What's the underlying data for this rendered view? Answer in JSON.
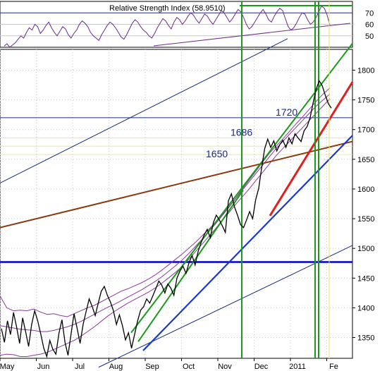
{
  "chart_data": {
    "type": "line",
    "indicator": {
      "title": "Relative Strength Index (58.9510)",
      "yticks": [
        70,
        60,
        50
      ],
      "ylim": [
        40,
        80
      ],
      "values": [
        41,
        43,
        40,
        42,
        44,
        47,
        50,
        48,
        53,
        57,
        55,
        60,
        58,
        52,
        55,
        59,
        62,
        57,
        53,
        50,
        54,
        58,
        56,
        51,
        48,
        52,
        55,
        60,
        63,
        61,
        58,
        53,
        50,
        48,
        46,
        51,
        55,
        59,
        62,
        60,
        57,
        53,
        49,
        47,
        51,
        56,
        61,
        64,
        62,
        58,
        55,
        53,
        50,
        48,
        52,
        57,
        61,
        65,
        63,
        59,
        56,
        62,
        66,
        64,
        60,
        63,
        67,
        70,
        68,
        64,
        61,
        65,
        69,
        67,
        63,
        60,
        64,
        68,
        72,
        70,
        66,
        62,
        65,
        69,
        73,
        71,
        66,
        60,
        56,
        58,
        62,
        66,
        70,
        73,
        69,
        64,
        62,
        67,
        71,
        74,
        72,
        65,
        58,
        55,
        57,
        61,
        66,
        70,
        69,
        64,
        60,
        62,
        66,
        71,
        76,
        74,
        68,
        59
      ]
    },
    "price": {
      "yticks": [
        1800,
        1750,
        1700,
        1650,
        1600,
        1550,
        1500,
        1450,
        1400,
        1350
      ],
      "ylim": [
        1315,
        1835
      ],
      "xlabels": [
        "May",
        "Jun",
        "Jul",
        "Aug",
        "Sep",
        "Oct",
        "Nov",
        "Dec",
        "2011",
        "Fe"
      ],
      "values": [
        1365,
        1342,
        1378,
        1355,
        1392,
        1368,
        1340,
        1383,
        1360,
        1335,
        1372,
        1395,
        1378,
        1356,
        1332,
        1318,
        1345,
        1330,
        1322,
        1357,
        1380,
        1342,
        1320,
        1356,
        1390,
        1366,
        1340,
        1372,
        1394,
        1415,
        1402,
        1387,
        1408,
        1428,
        1436,
        1421,
        1410,
        1395,
        1372,
        1388,
        1370,
        1346,
        1358,
        1332,
        1355,
        1378,
        1396,
        1402,
        1415,
        1408,
        1420,
        1432,
        1445,
        1438,
        1425,
        1440,
        1433,
        1421,
        1450,
        1462,
        1470,
        1458,
        1476,
        1488,
        1472,
        1495,
        1510,
        1523,
        1532,
        1518,
        1543,
        1556,
        1548,
        1538,
        1527,
        1580,
        1592,
        1570,
        1556,
        1540,
        1535,
        1548,
        1562,
        1550,
        1582,
        1601,
        1636,
        1668,
        1684,
        1670,
        1681,
        1664,
        1675,
        1682,
        1670,
        1686,
        1676,
        1693,
        1686,
        1680,
        1698,
        1705,
        1720,
        1745,
        1768,
        1782,
        1774,
        1758,
        1744,
        1736
      ],
      "upper_band": [
        1420,
        1400,
        1395,
        1396,
        1395,
        1398,
        1393,
        1389,
        1390,
        1387,
        1385,
        1390,
        1395,
        1400,
        1404,
        1410,
        1416,
        1422,
        1428,
        1432,
        1437,
        1442,
        1448,
        1455,
        1463,
        1472,
        1481,
        1490,
        1500,
        1510,
        1521,
        1532,
        1544,
        1556,
        1570,
        1584,
        1600,
        1615,
        1630,
        1645,
        1660,
        1672,
        1684,
        1697,
        1710,
        1722,
        1735,
        1748,
        1760,
        1770
      ],
      "middle_band": [
        1370,
        1368,
        1366,
        1364,
        1363,
        1362,
        1360,
        1360,
        1362,
        1365,
        1368,
        1372,
        1377,
        1383,
        1389,
        1395,
        1401,
        1406,
        1412,
        1418,
        1424,
        1430,
        1437,
        1444,
        1452,
        1461,
        1470,
        1480,
        1491,
        1503,
        1515,
        1528,
        1541,
        1555,
        1569,
        1584,
        1598,
        1612,
        1626,
        1640,
        1654,
        1668,
        1680,
        1692,
        1704,
        1716,
        1728,
        1740,
        1750,
        1760
      ],
      "lower_band": [
        1320,
        1322,
        1321,
        1318,
        1318,
        1320,
        1322,
        1325,
        1330,
        1335,
        1340,
        1345,
        1352,
        1360,
        1368,
        1377,
        1386,
        1394,
        1401,
        1408,
        1414,
        1420,
        1426,
        1433,
        1441,
        1450,
        1459,
        1469,
        1481,
        1494,
        1507,
        1520,
        1533,
        1547,
        1560,
        1574,
        1587,
        1600,
        1614,
        1628,
        1642,
        1656,
        1668,
        1680,
        1692,
        1704,
        1716,
        1728,
        1740,
        1752
      ],
      "annotations": [
        {
          "text": "1720",
          "value": 1720
        },
        {
          "text": "1686",
          "value": 1686
        },
        {
          "text": "1650",
          "value": 1650
        }
      ],
      "horizontal_levels": [
        {
          "value": 1720,
          "color": "#1a2a8a"
        },
        {
          "value": 1686,
          "color": "#e8e8a0"
        },
        {
          "value": 1672,
          "color": "#e8e8a0"
        },
        {
          "value": 1658,
          "color": "#e8e8a0"
        },
        {
          "value": 1477,
          "color": "#0000cc"
        }
      ]
    },
    "colors": {
      "price": "#000000",
      "bands": "#8a3a9a",
      "rsi": "#6a2a8a",
      "green_channel": "#1a9a1a",
      "blue_trend": "#1a3acc",
      "red_trend": "#e02020",
      "brown_trend": "#8a3a10",
      "navy_channel": "#1a2a7a",
      "yellow_marker": "#e8e070",
      "grid": "#c8c8c8"
    }
  }
}
